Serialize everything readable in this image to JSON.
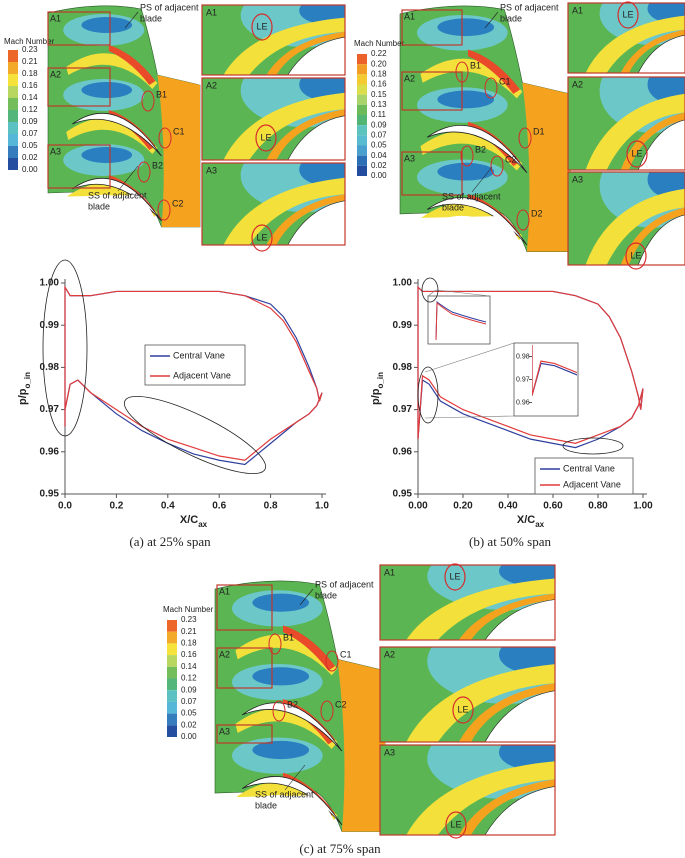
{
  "figure": {
    "captions": [
      "(a)  at 25% span",
      "(b)  at 50% span",
      "(c)  at 75% span"
    ],
    "panels": [
      {
        "colorbar_title": "Mach Number",
        "colorbar_labels": [
          "0.23",
          "0.21",
          "0.18",
          "0.16",
          "0.14",
          "0.12",
          "0.09",
          "0.07",
          "0.05",
          "0.02",
          "0.00"
        ],
        "region_labels": [
          "A1",
          "A2",
          "A3"
        ],
        "zoom_labels": [
          "A1",
          "A2",
          "A3"
        ],
        "le_labels": [
          "LE",
          "LE",
          "LE"
        ],
        "point_labels": [
          "B1",
          "C1",
          "B2",
          "C2"
        ],
        "ps_label": [
          "PS of adjacent",
          "blade"
        ],
        "ss_label": [
          "SS of adjacent",
          "blade"
        ]
      },
      {
        "colorbar_title": "Mach Number",
        "colorbar_labels": [
          "0.22",
          "0.20",
          "0.18",
          "0.16",
          "0.15",
          "0.13",
          "0.11",
          "0.09",
          "0.07",
          "0.05",
          "0.04",
          "0.02",
          "0.00"
        ],
        "region_labels": [
          "A1",
          "A2",
          "A3"
        ],
        "zoom_labels": [
          "A1",
          "A2",
          "A3"
        ],
        "le_labels": [
          "LE",
          "LE",
          "LE"
        ],
        "point_labels": [
          "B1",
          "C1",
          "D1",
          "B2",
          "C2",
          "D2"
        ],
        "ps_label": [
          "PS of adjacent",
          "blade"
        ],
        "ss_label": [
          "SS of adjacent",
          "blade"
        ]
      },
      {
        "colorbar_title": "Mach Number",
        "colorbar_labels": [
          "0.23",
          "0.21",
          "0.18",
          "0.16",
          "0.14",
          "0.12",
          "0.09",
          "0.07",
          "0.05",
          "0.02",
          "0.00"
        ],
        "region_labels": [
          "A1",
          "A2",
          "A3"
        ],
        "zoom_labels": [
          "A1",
          "A2",
          "A3"
        ],
        "le_labels": [
          "LE",
          "LE",
          "LE"
        ],
        "point_labels": [
          "B1",
          "C1",
          "B2",
          "C2"
        ],
        "ps_label": [
          "PS of adjacent",
          "blade"
        ],
        "ss_label": [
          "SS of adjacent",
          "blade"
        ]
      }
    ]
  },
  "chart_data": [
    {
      "type": "line",
      "ylabel": "p/p",
      "ylabel_sub": "o_in",
      "xlabel": "X/C",
      "xlabel_sub": "ax",
      "x": [
        0,
        0,
        0.02,
        0.05,
        0.1,
        0.2,
        0.3,
        0.4,
        0.5,
        0.6,
        0.7,
        0.8,
        0.85,
        0.9,
        0.95,
        0.98,
        0.99,
        1.0,
        0.98,
        0.95,
        0.9,
        0.8,
        0.7,
        0.6,
        0.5,
        0.4,
        0.3,
        0.2,
        0.1,
        0.05,
        0.02,
        0
      ],
      "series": [
        {
          "name": "Central Vane",
          "color": "#2f3f9e",
          "values": [
            0.966,
            0.999,
            0.997,
            0.997,
            0.997,
            0.998,
            0.998,
            0.998,
            0.998,
            0.998,
            0.997,
            0.995,
            0.992,
            0.987,
            0.98,
            0.975,
            0.972,
            0.974,
            0.971,
            0.969,
            0.967,
            0.962,
            0.957,
            0.958,
            0.9595,
            0.962,
            0.965,
            0.969,
            0.974,
            0.977,
            0.976,
            0.97
          ]
        },
        {
          "name": "Adjacent Vane",
          "color": "#e23b3b",
          "values": [
            0.966,
            0.999,
            0.997,
            0.997,
            0.997,
            0.998,
            0.998,
            0.998,
            0.998,
            0.998,
            0.997,
            0.994,
            0.991,
            0.986,
            0.979,
            0.975,
            0.972,
            0.974,
            0.971,
            0.969,
            0.967,
            0.963,
            0.958,
            0.959,
            0.961,
            0.963,
            0.966,
            0.97,
            0.974,
            0.977,
            0.976,
            0.97
          ]
        }
      ],
      "xlim": [
        0,
        1
      ],
      "ylim": [
        0.95,
        1
      ],
      "xticks": [
        {
          "value": 0,
          "label": "0.0"
        },
        0.2,
        0.4,
        0.6,
        0.8,
        {
          "value": 1,
          "label": "1.0"
        }
      ],
      "yticks": [
        0.95,
        0.96,
        0.97,
        0.98,
        0.99,
        {
          "value": 1,
          "label": "1.00"
        }
      ],
      "legend": "center-right"
    },
    {
      "type": "line",
      "ylabel": "p/p",
      "ylabel_sub": "o_in",
      "xlabel": "X/C",
      "xlabel_sub": "ax",
      "x": [
        0,
        0,
        0.02,
        0.05,
        0.1,
        0.2,
        0.3,
        0.4,
        0.5,
        0.6,
        0.7,
        0.8,
        0.85,
        0.9,
        0.95,
        0.98,
        0.99,
        1.0,
        0.98,
        0.95,
        0.9,
        0.8,
        0.7,
        0.6,
        0.5,
        0.4,
        0.3,
        0.2,
        0.1,
        0.05,
        0.02,
        0
      ],
      "series": [
        {
          "name": "Central Vane",
          "color": "#2f3f9e",
          "values": [
            0.963,
            0.999,
            0.998,
            0.998,
            0.998,
            0.998,
            0.998,
            0.998,
            0.998,
            0.998,
            0.997,
            0.995,
            0.992,
            0.987,
            0.979,
            0.973,
            0.97,
            0.975,
            0.971,
            0.968,
            0.966,
            0.963,
            0.961,
            0.962,
            0.963,
            0.965,
            0.967,
            0.969,
            0.972,
            0.976,
            0.977,
            0.963
          ]
        },
        {
          "name": "Adjacent Vane",
          "color": "#e23b3b",
          "values": [
            0.963,
            0.999,
            0.998,
            0.998,
            0.998,
            0.998,
            0.998,
            0.998,
            0.998,
            0.998,
            0.997,
            0.995,
            0.992,
            0.987,
            0.979,
            0.973,
            0.97,
            0.975,
            0.971,
            0.968,
            0.966,
            0.964,
            0.962,
            0.963,
            0.964,
            0.966,
            0.968,
            0.97,
            0.973,
            0.977,
            0.978,
            0.963
          ]
        }
      ],
      "xlim": [
        0,
        1
      ],
      "ylim": [
        0.95,
        1
      ],
      "xticks": [
        {
          "value": 0,
          "label": "0.00"
        },
        {
          "value": 0.2,
          "label": "0.20"
        },
        {
          "value": 0.4,
          "label": "0.40"
        },
        {
          "value": 0.6,
          "label": "0.60"
        },
        {
          "value": 0.8,
          "label": "0.80"
        },
        {
          "value": 1,
          "label": "1.00"
        }
      ],
      "yticks": [
        0.95,
        0.96,
        0.97,
        0.98,
        0.99,
        {
          "value": 1,
          "label": "1.00"
        }
      ],
      "legend": "lower-right",
      "inset": {
        "xlim": [
          0,
          0.1
        ],
        "ylim": [
          0.955,
          0.985
        ],
        "yticks": [
          0.98,
          0.97,
          0.96
        ]
      }
    }
  ]
}
